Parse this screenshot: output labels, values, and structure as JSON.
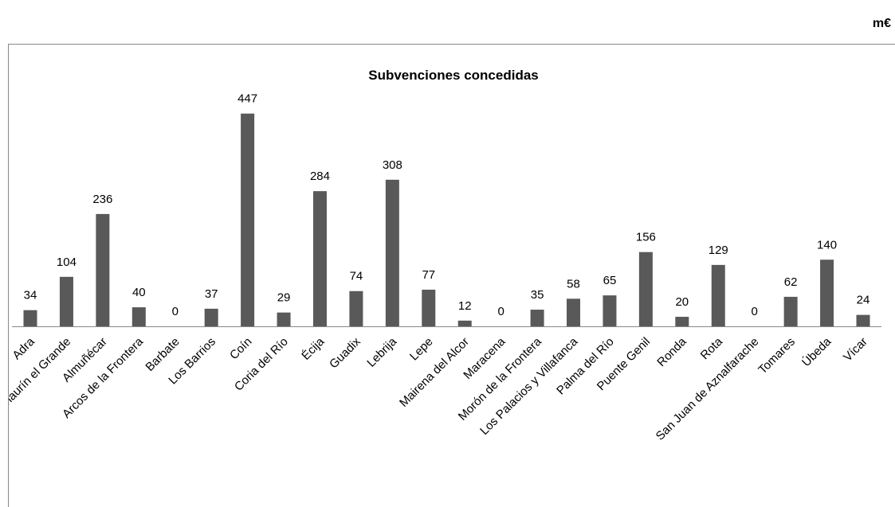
{
  "chart_data": {
    "type": "bar",
    "title": "Subvenciones concedidas",
    "unit": "m€",
    "categories": [
      "Adra",
      "Alhaurín el Grande",
      "Almuñécar",
      "Arcos de la Frontera",
      "Barbate",
      "Los Barrios",
      "Coín",
      "Coria del Río",
      "Écija",
      "Guadix",
      "Lebrija",
      "Lepe",
      "Mairena del Alcor",
      "Maracena",
      "Morón de la Frontera",
      "Los Palacios y Villafanca",
      "Palma del Río",
      "Puente Genil",
      "Ronda",
      "Rota",
      "San Juan de Aznalfarache",
      "Tomares",
      "Úbeda",
      "Vícar"
    ],
    "values": [
      34,
      104,
      236,
      40,
      0,
      37,
      447,
      29,
      284,
      74,
      308,
      77,
      12,
      0,
      35,
      58,
      65,
      156,
      20,
      129,
      0,
      62,
      140,
      24
    ],
    "color": "#595959",
    "ylim": [
      0,
      500
    ]
  }
}
